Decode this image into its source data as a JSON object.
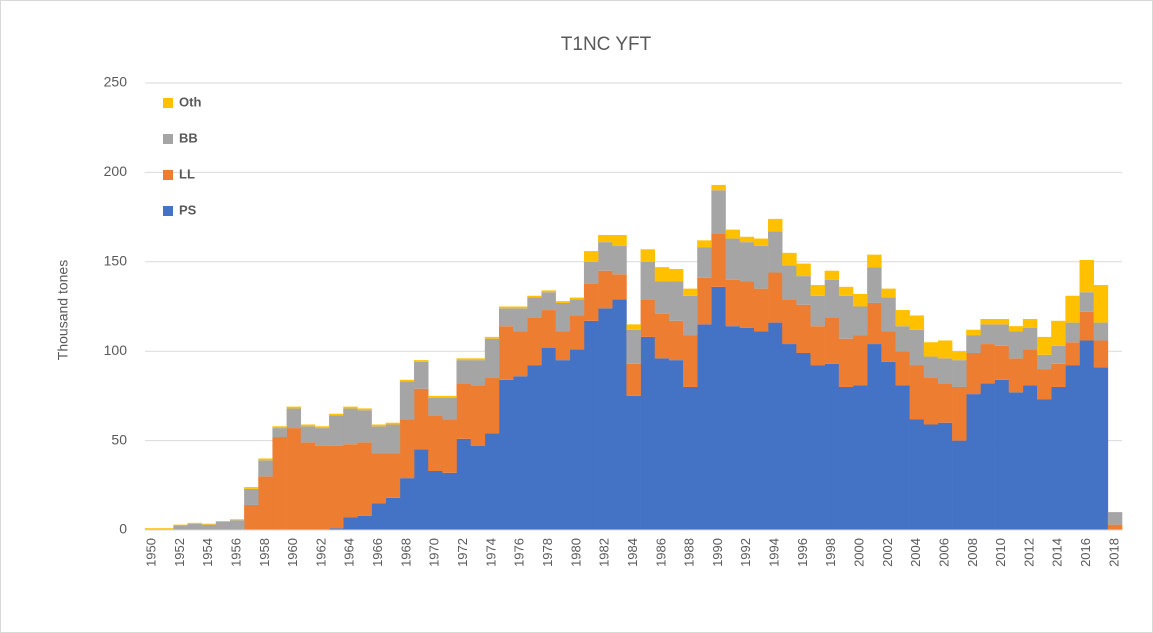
{
  "chart_data": {
    "type": "stacked-bar",
    "title": "T1NC YFT",
    "y_label": "Thousand tones",
    "categories": [
      "1950",
      null,
      "1952",
      null,
      "1954",
      null,
      "1956",
      null,
      "1958",
      null,
      "1960",
      null,
      "1962",
      null,
      "1964",
      null,
      "1966",
      null,
      "1968",
      null,
      "1970",
      null,
      "1972",
      null,
      "1974",
      null,
      "1976",
      null,
      "1978",
      null,
      "1980",
      null,
      "1982",
      null,
      "1984",
      null,
      "1986",
      null,
      "1988",
      null,
      "1990",
      null,
      "1992",
      null,
      "1994",
      null,
      "1996",
      null,
      "1998",
      null,
      "2000",
      null,
      "2002",
      null,
      "2004",
      null,
      "2006",
      null,
      "2008",
      null,
      "2010",
      null,
      "2012",
      null,
      "2014",
      null,
      "2016",
      null,
      "2018"
    ],
    "series": [
      {
        "name": "PS",
        "color": "#4472c4",
        "values": [
          0,
          0,
          0,
          0,
          0,
          0,
          0,
          0,
          0,
          0,
          0,
          0,
          0,
          1,
          7,
          8,
          15,
          18,
          29,
          45,
          33,
          32,
          51,
          47,
          54,
          84,
          86,
          92,
          102,
          95,
          101,
          117,
          124,
          129,
          75,
          108,
          96,
          95,
          80,
          115,
          136,
          114,
          113,
          111,
          116,
          104,
          99,
          92,
          93,
          80,
          81,
          104,
          94,
          81,
          62,
          59,
          60,
          50,
          76,
          82,
          84,
          77,
          81,
          73,
          80,
          92,
          106,
          91,
          0
        ]
      },
      {
        "name": "LL",
        "color": "#ed7d31",
        "values": [
          0,
          0,
          0,
          0,
          0,
          0,
          0,
          14,
          30,
          52,
          57,
          49,
          47,
          46,
          41,
          41,
          28,
          25,
          33,
          34,
          31,
          30,
          31,
          34,
          31,
          30,
          25,
          27,
          21,
          16,
          19,
          21,
          21,
          14,
          18,
          21,
          25,
          22,
          29,
          26,
          30,
          26,
          26,
          24,
          28,
          25,
          27,
          22,
          26,
          27,
          28,
          23,
          17,
          19,
          30,
          26,
          22,
          30,
          23,
          22,
          19,
          19,
          20,
          17,
          13,
          13,
          16,
          15,
          3
        ]
      },
      {
        "name": "BB",
        "color": "#a5a5a5",
        "values": [
          0.5,
          0.5,
          2.5,
          3.5,
          3,
          4.5,
          5.5,
          9,
          9,
          5,
          11,
          9,
          10,
          17,
          20,
          18,
          15,
          16,
          21,
          15,
          10,
          12,
          13,
          14,
          22,
          10,
          13,
          11,
          10,
          16,
          9,
          12,
          16,
          16,
          19,
          21,
          18,
          22,
          22,
          17,
          24,
          23,
          22,
          24,
          23,
          19,
          16,
          17,
          21,
          24,
          16,
          20,
          19,
          14,
          20,
          12,
          14,
          15,
          10,
          11,
          12,
          15,
          12,
          8,
          10,
          11,
          11,
          10,
          7
        ]
      },
      {
        "name": "Oth",
        "color": "#ffc000",
        "values": [
          0.5,
          0.5,
          0.5,
          0.5,
          0.5,
          0.5,
          0.5,
          1,
          1,
          1,
          1,
          1,
          1,
          1,
          1,
          1,
          1,
          1,
          1,
          1,
          1,
          1,
          1,
          1,
          1,
          1,
          1,
          1,
          1,
          1,
          1,
          6,
          4,
          6,
          3,
          7,
          8,
          7,
          4,
          4,
          3,
          5,
          3,
          4,
          7,
          7,
          7,
          6,
          5,
          5,
          7,
          7,
          5,
          9,
          8,
          8,
          10,
          5,
          3,
          3,
          3,
          3,
          5,
          10,
          14,
          15,
          18,
          21,
          0
        ]
      }
    ],
    "ylim": [
      0,
      250
    ],
    "yticks": [
      0,
      50,
      100,
      150,
      200,
      250
    ],
    "grid": true,
    "legend": "upper-left"
  }
}
